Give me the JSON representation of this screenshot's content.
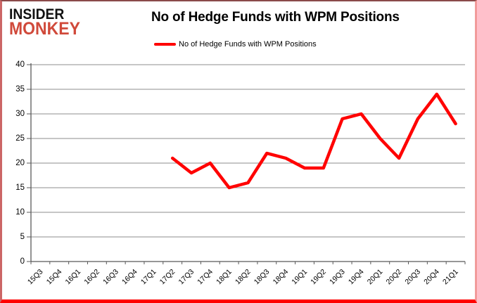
{
  "logo": {
    "line1": "INSIDER",
    "line2": "MONKEY",
    "line2_color": "#d0493a"
  },
  "header": {
    "title": "No of Hedge Funds with WPM Positions"
  },
  "legend": {
    "label": "No of Hedge Funds with WPM Positions",
    "line_color": "#ff0000"
  },
  "chart_data": {
    "type": "line",
    "title": "No of Hedge Funds with WPM Positions",
    "categories": [
      "15Q3",
      "15Q4",
      "16Q1",
      "16Q2",
      "16Q3",
      "16Q4",
      "17Q1",
      "17Q2",
      "17Q3",
      "17Q4",
      "18Q1",
      "18Q2",
      "18Q3",
      "18Q4",
      "19Q1",
      "19Q2",
      "19Q3",
      "19Q4",
      "20Q1",
      "20Q2",
      "20Q3",
      "20Q4",
      "21Q1"
    ],
    "series": [
      {
        "name": "No of Hedge Funds with WPM Positions",
        "color": "#ff0000",
        "values": [
          null,
          null,
          null,
          null,
          null,
          null,
          null,
          21,
          18,
          20,
          15,
          16,
          22,
          21,
          19,
          19,
          29,
          30,
          25,
          21,
          29,
          34,
          28
        ]
      }
    ],
    "xlabel": "",
    "ylabel": "",
    "ylim": [
      0,
      40
    ],
    "ytick_step": 5,
    "grid": true,
    "legend_position": "top",
    "grid_color": "#8c8c8c",
    "axis_color": "#595959",
    "tick_label_color": "#000000"
  }
}
